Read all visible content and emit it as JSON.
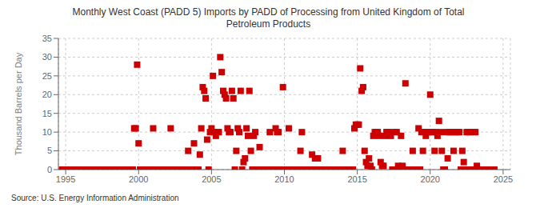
{
  "chart_data": {
    "type": "scatter",
    "title": "Monthly West Coast (PADD 5) Imports by PADD of Processing from United Kingdom of Total\nPetroleum Products",
    "ylabel": "Thousand Barrels per Day",
    "annotations": [
      "Source: U.S. Energy Information Administration"
    ],
    "color": "#cc0000",
    "marker": "square",
    "grid": true,
    "xlim": [
      1994.5,
      2025.5
    ],
    "xticks": [
      1995,
      2000,
      2005,
      2010,
      2015,
      2020,
      2025
    ],
    "ylim": [
      0,
      35
    ],
    "yticks": [
      0,
      5,
      10,
      15,
      20,
      25,
      30,
      35
    ],
    "x": [
      1994.75,
      1995.0,
      1995.1,
      1995.2,
      1995.3,
      1995.4,
      1995.5,
      1995.6,
      1995.7,
      1995.8,
      1995.9,
      1996.0,
      1996.1,
      1996.2,
      1996.3,
      1996.4,
      1996.5,
      1996.6,
      1996.7,
      1996.8,
      1996.9,
      1997.0,
      1997.1,
      1997.2,
      1997.3,
      1997.4,
      1997.5,
      1997.6,
      1997.7,
      1997.8,
      1997.9,
      1998.0,
      1998.1,
      1998.2,
      1998.3,
      1998.4,
      1998.5,
      1998.6,
      1998.7,
      1998.8,
      1998.9,
      1999.0,
      1999.1,
      1999.2,
      1999.3,
      1999.4,
      1999.5,
      1999.6,
      1999.7,
      1999.8,
      1999.9,
      2000.0,
      2000.1,
      2000.2,
      2000.3,
      2000.4,
      2000.5,
      2000.6,
      2000.7,
      2000.8,
      2000.9,
      2001.0,
      2001.1,
      2001.2,
      2001.3,
      2001.4,
      2001.5,
      2001.6,
      2001.7,
      2001.8,
      2001.9,
      2002.0,
      2002.1,
      2002.2,
      2002.3,
      2002.4,
      2002.5,
      2002.6,
      2002.7,
      2002.8,
      2002.9,
      2003.0,
      2003.1,
      2003.2,
      2003.3,
      2003.4,
      2003.5,
      2003.6,
      2003.7,
      2003.8,
      2003.9,
      2004.0,
      2004.1,
      2004.2,
      2004.3,
      2004.4,
      2004.5,
      2004.6,
      2004.7,
      2004.8,
      2004.9,
      2005.0,
      2005.1,
      2005.2,
      2005.3,
      2005.4,
      2005.5,
      2005.6,
      2005.7,
      2005.8,
      2005.9,
      2006.0,
      2006.1,
      2006.2,
      2006.3,
      2006.4,
      2006.5,
      2006.6,
      2006.7,
      2006.8,
      2006.9,
      2007.0,
      2007.1,
      2007.2,
      2007.3,
      2007.4,
      2007.5,
      2007.6,
      2007.7,
      2007.8,
      2007.9,
      2008.0,
      2008.1,
      2008.2,
      2008.3,
      2008.4,
      2008.5,
      2008.6,
      2008.7,
      2008.8,
      2008.9,
      2009.0,
      2009.1,
      2009.2,
      2009.3,
      2009.4,
      2009.5,
      2009.6,
      2009.7,
      2009.8,
      2009.9,
      2010.0,
      2010.1,
      2010.2,
      2010.3,
      2010.4,
      2010.5,
      2010.6,
      2010.7,
      2010.8,
      2010.9,
      2011.0,
      2011.1,
      2011.2,
      2011.3,
      2011.4,
      2011.5,
      2011.6,
      2011.7,
      2011.8,
      2011.9,
      2012.0,
      2012.1,
      2012.2,
      2012.3,
      2012.4,
      2012.5,
      2012.6,
      2012.7,
      2012.8,
      2012.9,
      2013.0,
      2013.1,
      2013.2,
      2013.3,
      2013.4,
      2013.5,
      2013.6,
      2013.7,
      2013.8,
      2013.9,
      2014.0,
      2014.1,
      2014.2,
      2014.3,
      2014.4,
      2014.5,
      2014.6,
      2014.7,
      2014.8,
      2014.9,
      2015.0,
      2015.1,
      2015.2,
      2015.3,
      2015.4,
      2015.5,
      2015.6,
      2015.7,
      2015.8,
      2015.9,
      2016.0,
      2016.1,
      2016.2,
      2016.3,
      2016.4,
      2016.5,
      2016.6,
      2016.7,
      2016.8,
      2016.9,
      2017.0,
      2017.1,
      2017.2,
      2017.3,
      2017.4,
      2017.5,
      2017.6,
      2017.7,
      2017.8,
      2017.9,
      2018.0,
      2018.1,
      2018.2,
      2018.3,
      2018.4,
      2018.5,
      2018.6,
      2018.7,
      2018.8,
      2018.9,
      2019.0,
      2019.1,
      2019.2,
      2019.3,
      2019.4,
      2019.5,
      2019.6,
      2019.7,
      2019.8,
      2019.9,
      2020.0,
      2020.1,
      2020.2,
      2020.3,
      2020.4,
      2020.5,
      2020.6,
      2020.7,
      2020.8,
      2020.9,
      2021.0,
      2021.1,
      2021.2,
      2021.3,
      2021.4,
      2021.5,
      2021.6,
      2021.7,
      2021.8,
      2021.9,
      2022.0,
      2022.1,
      2022.2,
      2022.3,
      2022.4,
      2022.5,
      2022.6,
      2022.7,
      2022.8,
      2022.9,
      2023.0,
      2023.1,
      2023.2,
      2023.3,
      2023.4,
      2023.5,
      2023.6,
      2023.7,
      2023.8,
      2023.9,
      2024.0,
      2024.1,
      2024.2,
      2024.3,
      2024.4
    ],
    "values": [
      0,
      0,
      0,
      0,
      0,
      0,
      0,
      0,
      0,
      0,
      0,
      0,
      0,
      0,
      0,
      0,
      0,
      0,
      0,
      0,
      0,
      0,
      0,
      0,
      0,
      0,
      0,
      0,
      0,
      0,
      0,
      0,
      0,
      0,
      0,
      0,
      0,
      0,
      0,
      0,
      0,
      0,
      0,
      0,
      0,
      0,
      0,
      0,
      11,
      11,
      28,
      7,
      0,
      0,
      0,
      0,
      0,
      0,
      0,
      0,
      0,
      11,
      0,
      0,
      0,
      0,
      0,
      0,
      0,
      0,
      0,
      0,
      0,
      11,
      0,
      0,
      0,
      0,
      0,
      0,
      0,
      0,
      0,
      0,
      0,
      5,
      0,
      0,
      0,
      7,
      0,
      0,
      0,
      4,
      11,
      22,
      21,
      19,
      8,
      0,
      10,
      11,
      25,
      10,
      9,
      10,
      10,
      30,
      26,
      21,
      20,
      19,
      11,
      10,
      10,
      21,
      19,
      0,
      5,
      11,
      10,
      21,
      0,
      2,
      3,
      11,
      9,
      21,
      5,
      0,
      9,
      10,
      0,
      0,
      6,
      0,
      0,
      0,
      0,
      0,
      0,
      10,
      0,
      0,
      0,
      11,
      10,
      10,
      0,
      0,
      22,
      0,
      0,
      0,
      11,
      0,
      0,
      0,
      0,
      0,
      0,
      0,
      5,
      10,
      0,
      0,
      0,
      0,
      0,
      0,
      4,
      0,
      3,
      0,
      3,
      0,
      0,
      0,
      0,
      0,
      0,
      0,
      0,
      0,
      0,
      0,
      0,
      0,
      0,
      0,
      0,
      5,
      0,
      0,
      0,
      0,
      0,
      0,
      0,
      11,
      12,
      12,
      12,
      27,
      21,
      22,
      5,
      2,
      1,
      3,
      1,
      0,
      9,
      10,
      10,
      10,
      9,
      2,
      1,
      1,
      9,
      10,
      10,
      10,
      9,
      0,
      0,
      10,
      10,
      1,
      0,
      9,
      1,
      0,
      23,
      0,
      0,
      0,
      0,
      5,
      0,
      0,
      0,
      11,
      0,
      10,
      5,
      10,
      9,
      10,
      10,
      20,
      10,
      10,
      5,
      10,
      9,
      13,
      10,
      5,
      0,
      0,
      10,
      3,
      10,
      10,
      10,
      5,
      10,
      10,
      10,
      10,
      0,
      5,
      2,
      0,
      10,
      10,
      10,
      0,
      0,
      10,
      10,
      1,
      0,
      0,
      0,
      0,
      0,
      0,
      0,
      0,
      0,
      0,
      0,
      0
    ]
  }
}
